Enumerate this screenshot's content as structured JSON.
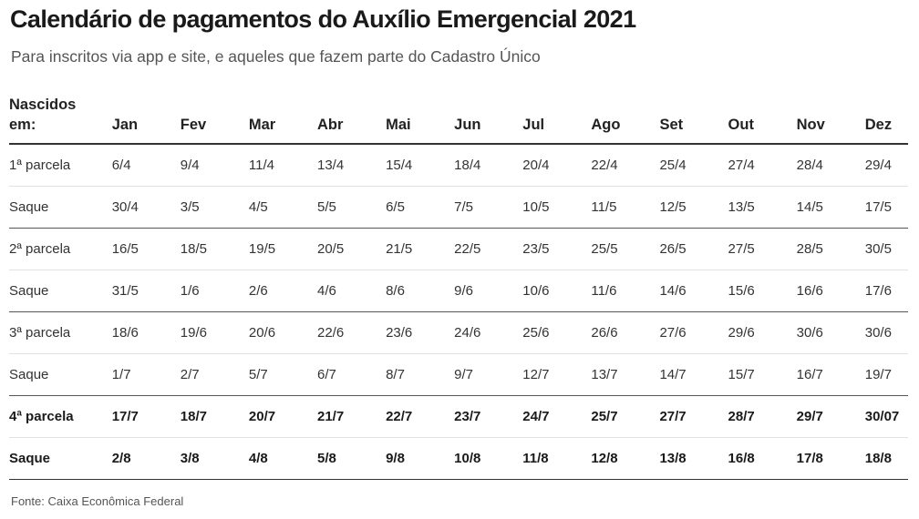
{
  "title": "Calendário de pagamentos do Auxílio Emergencial 2021",
  "subtitle": "Para inscritos via app e site, e aqueles que fazem parte do Cadastro Único",
  "table": {
    "row_header_line1": "Nascidos",
    "row_header_line2": "em:",
    "months": [
      "Jan",
      "Fev",
      "Mar",
      "Abr",
      "Mai",
      "Jun",
      "Jul",
      "Ago",
      "Set",
      "Out",
      "Nov",
      "Dez"
    ],
    "rows": [
      {
        "label": "1ª parcela",
        "bold": false,
        "group_end": false,
        "values": [
          "6/4",
          "9/4",
          "11/4",
          "13/4",
          "15/4",
          "18/4",
          "20/4",
          "22/4",
          "25/4",
          "27/4",
          "28/4",
          "29/4"
        ]
      },
      {
        "label": "Saque",
        "bold": false,
        "group_end": true,
        "values": [
          "30/4",
          "3/5",
          "4/5",
          "5/5",
          "6/5",
          "7/5",
          "10/5",
          "11/5",
          "12/5",
          "13/5",
          "14/5",
          "17/5"
        ]
      },
      {
        "label": "2ª parcela",
        "bold": false,
        "group_end": false,
        "values": [
          "16/5",
          "18/5",
          "19/5",
          "20/5",
          "21/5",
          "22/5",
          "23/5",
          "25/5",
          "26/5",
          "27/5",
          "28/5",
          "30/5"
        ]
      },
      {
        "label": "Saque",
        "bold": false,
        "group_end": true,
        "values": [
          "31/5",
          "1/6",
          "2/6",
          "4/6",
          "8/6",
          "9/6",
          "10/6",
          "11/6",
          "14/6",
          "15/6",
          "16/6",
          "17/6"
        ]
      },
      {
        "label": "3ª parcela",
        "bold": false,
        "group_end": false,
        "values": [
          "18/6",
          "19/6",
          "20/6",
          "22/6",
          "23/6",
          "24/6",
          "25/6",
          "26/6",
          "27/6",
          "29/6",
          "30/6",
          "30/6"
        ]
      },
      {
        "label": "Saque",
        "bold": false,
        "group_end": true,
        "values": [
          "1/7",
          "2/7",
          "5/7",
          "6/7",
          "8/7",
          "9/7",
          "12/7",
          "13/7",
          "14/7",
          "15/7",
          "16/7",
          "19/7"
        ]
      },
      {
        "label": "4ª parcela",
        "bold": true,
        "group_end": false,
        "values": [
          "17/7",
          "18/7",
          "20/7",
          "21/7",
          "22/7",
          "23/7",
          "24/7",
          "25/7",
          "27/7",
          "28/7",
          "29/7",
          "30/07"
        ]
      },
      {
        "label": "Saque",
        "bold": true,
        "group_end": false,
        "values": [
          "2/8",
          "3/8",
          "4/8",
          "5/8",
          "9/8",
          "10/8",
          "11/8",
          "12/8",
          "13/8",
          "16/8",
          "17/8",
          "18/8"
        ]
      }
    ]
  },
  "footer": "Fonte: Caixa Econômica Federal"
}
